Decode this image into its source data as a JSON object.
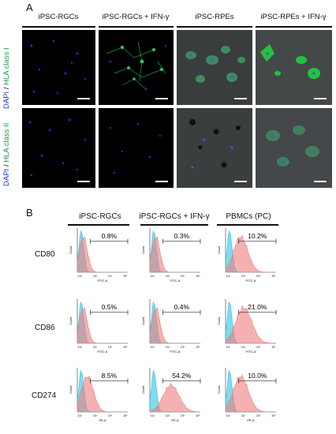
{
  "panel_a": {
    "letter": "A",
    "columns": [
      "iPSC-RGCs",
      "iPSC-RGCs + IFN-γ",
      "iPSC-RPEs",
      "iPSC-RPEs + IFN-γ"
    ],
    "rows": [
      {
        "stain_blue": "DAPI",
        "separator": " / ",
        "stain_green": "HLA class I"
      },
      {
        "stain_blue": "DAPI",
        "separator": " / ",
        "stain_green": "HLA class II"
      }
    ],
    "colors": {
      "dapi": "#2233cc",
      "hla": "#0c9a4a",
      "background": "#000000"
    }
  },
  "panel_b": {
    "letter": "B",
    "columns": [
      "iPSC-RGCs",
      "iPSC-RGCs + IFN-γ",
      "PBMCs (PC)"
    ],
    "markers": [
      "CD80",
      "CD86",
      "CD274"
    ],
    "y_axis_label": "Count",
    "x_axis_labels": [
      "FITC-A",
      "FITC-A",
      "PE-A"
    ],
    "x_ticks": [
      "10²",
      "10³",
      "10⁴",
      "10⁵"
    ],
    "percentages": [
      [
        "0.8%",
        "0.3%",
        "10.2%"
      ],
      [
        "0.5%",
        "0.4%",
        "21.0%"
      ],
      [
        "8.5%",
        "54.2%",
        "10.0%"
      ]
    ],
    "colors": {
      "isotype": "#29c4e6",
      "stained": "#ee7d7d"
    }
  }
}
